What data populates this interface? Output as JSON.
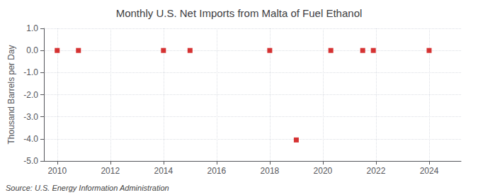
{
  "chart_data": {
    "type": "scatter",
    "title": "Monthly U.S. Net Imports from Malta of Fuel Ethanol",
    "y_label": "Thousand Barrels per Day",
    "source": "Source: U.S. Energy Information Administration",
    "x": [
      2010.0,
      2010.8,
      2014.0,
      2015.0,
      2018.0,
      2019.0,
      2020.3,
      2021.5,
      2021.9,
      2024.0
    ],
    "values": [
      0.0,
      0.0,
      0.0,
      0.0,
      0.0,
      -4.05,
      0.0,
      0.0,
      0.0,
      0.0
    ],
    "color": "#cc0000",
    "marker": "square",
    "xlim": [
      2009.5,
      2025.2
    ],
    "xticks": [
      2010,
      2012,
      2014,
      2016,
      2018,
      2020,
      2022,
      2024
    ],
    "ylim": [
      -5.0,
      1.0
    ],
    "yticks": [
      {
        "value": 1.0,
        "label": "1.0"
      },
      {
        "value": 0.0,
        "label": "0.0"
      },
      {
        "value": -1.0,
        "label": "-1.0"
      },
      {
        "value": -2.0,
        "label": "-2.0"
      },
      {
        "value": -3.0,
        "label": "-3.0"
      },
      {
        "value": -4.0,
        "label": "-4.0"
      },
      {
        "value": -5.0,
        "label": "-5.0"
      }
    ],
    "grid": true
  }
}
